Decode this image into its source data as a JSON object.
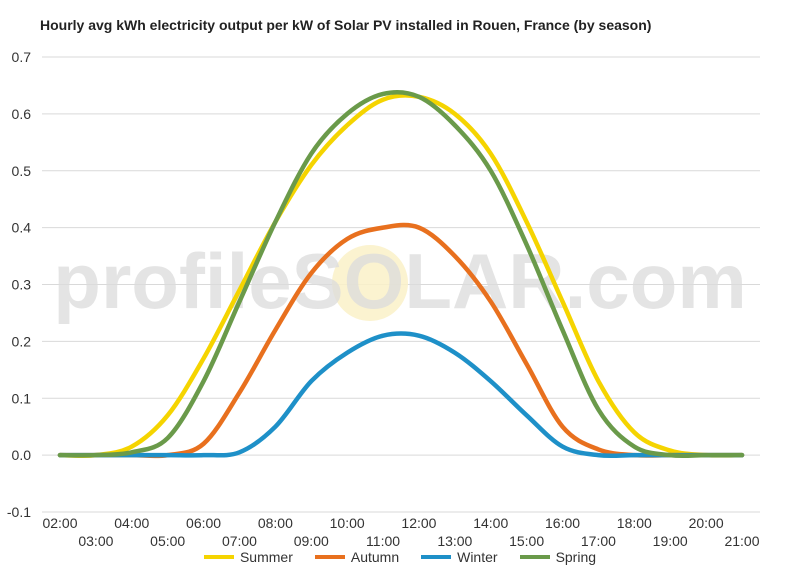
{
  "chart_data": {
    "type": "line",
    "title": "Hourly avg kWh electricity output per kW of Solar PV installed in Rouen, France (by season)",
    "watermark": "profileSOLAR.com",
    "ylim": [
      -0.1,
      0.7
    ],
    "yticks": [
      "-0.1",
      "0.0",
      "0.1",
      "0.2",
      "0.3",
      "0.4",
      "0.5",
      "0.6",
      "0.7"
    ],
    "xticks_upper": [
      "02:00",
      "04:00",
      "06:00",
      "08:00",
      "10:00",
      "12:00",
      "14:00",
      "16:00",
      "18:00",
      "20:00"
    ],
    "xticks_lower": [
      "03:00",
      "05:00",
      "07:00",
      "09:00",
      "11:00",
      "13:00",
      "15:00",
      "17:00",
      "19:00",
      "21:00"
    ],
    "x": [
      "02:00",
      "03:00",
      "04:00",
      "05:00",
      "06:00",
      "07:00",
      "08:00",
      "09:00",
      "10:00",
      "11:00",
      "12:00",
      "13:00",
      "14:00",
      "15:00",
      "16:00",
      "17:00",
      "18:00",
      "19:00",
      "20:00",
      "21:00"
    ],
    "legend_position": "bottom",
    "series": [
      {
        "name": "Summer",
        "color": "#f5d400",
        "values": [
          0.0,
          0.0,
          0.015,
          0.07,
          0.17,
          0.29,
          0.41,
          0.51,
          0.58,
          0.625,
          0.63,
          0.6,
          0.53,
          0.41,
          0.27,
          0.13,
          0.04,
          0.008,
          0.0,
          0.0
        ]
      },
      {
        "name": "Autumn",
        "color": "#e8701e",
        "values": [
          0.0,
          0.0,
          0.0,
          0.0,
          0.02,
          0.11,
          0.22,
          0.32,
          0.38,
          0.4,
          0.4,
          0.35,
          0.27,
          0.16,
          0.05,
          0.01,
          0.0,
          0.0,
          0.0,
          0.0
        ]
      },
      {
        "name": "Winter",
        "color": "#1e90c8",
        "values": [
          0.0,
          0.0,
          0.0,
          0.0,
          0.0,
          0.005,
          0.05,
          0.13,
          0.18,
          0.21,
          0.21,
          0.18,
          0.13,
          0.07,
          0.015,
          0.0,
          0.0,
          0.0,
          0.0,
          0.0
        ]
      },
      {
        "name": "Spring",
        "color": "#6a9a4a",
        "values": [
          0.0,
          0.0,
          0.005,
          0.03,
          0.13,
          0.27,
          0.41,
          0.53,
          0.6,
          0.635,
          0.63,
          0.58,
          0.5,
          0.37,
          0.22,
          0.08,
          0.015,
          0.0,
          0.0,
          0.0
        ]
      }
    ]
  }
}
